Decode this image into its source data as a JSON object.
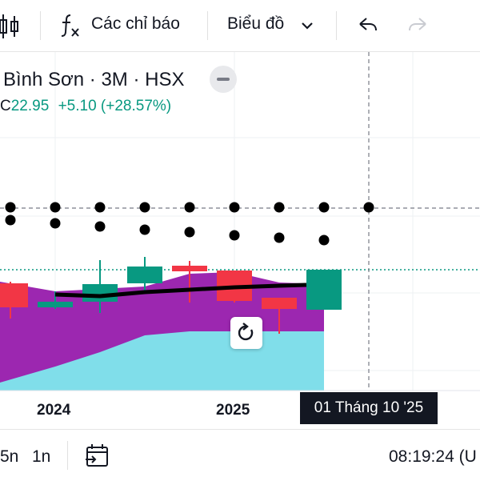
{
  "toolbar": {
    "indicators_label": "Các chỉ báo",
    "chart_type_label": "Biểu đồ"
  },
  "legend": {
    "title": "Bình Sơn · 3M · HSX",
    "close_prefix": "C",
    "close_value": "22.95",
    "change": "+5.10 (+28.57%)"
  },
  "chart_data": {
    "type": "candlestick",
    "x_tick_labels": [
      "2024",
      "2025"
    ],
    "crosshair_label": "01 Tháng 10 '25",
    "colors": {
      "up": "#089981",
      "down": "#f23645",
      "ma": "#000000",
      "area_purple": "#9c27b0",
      "area_cyan": "#80deea"
    }
  },
  "bottom_bar": {
    "tf_5n": "5n",
    "tf_1n": "1n",
    "time": "08:19:24 (U"
  }
}
